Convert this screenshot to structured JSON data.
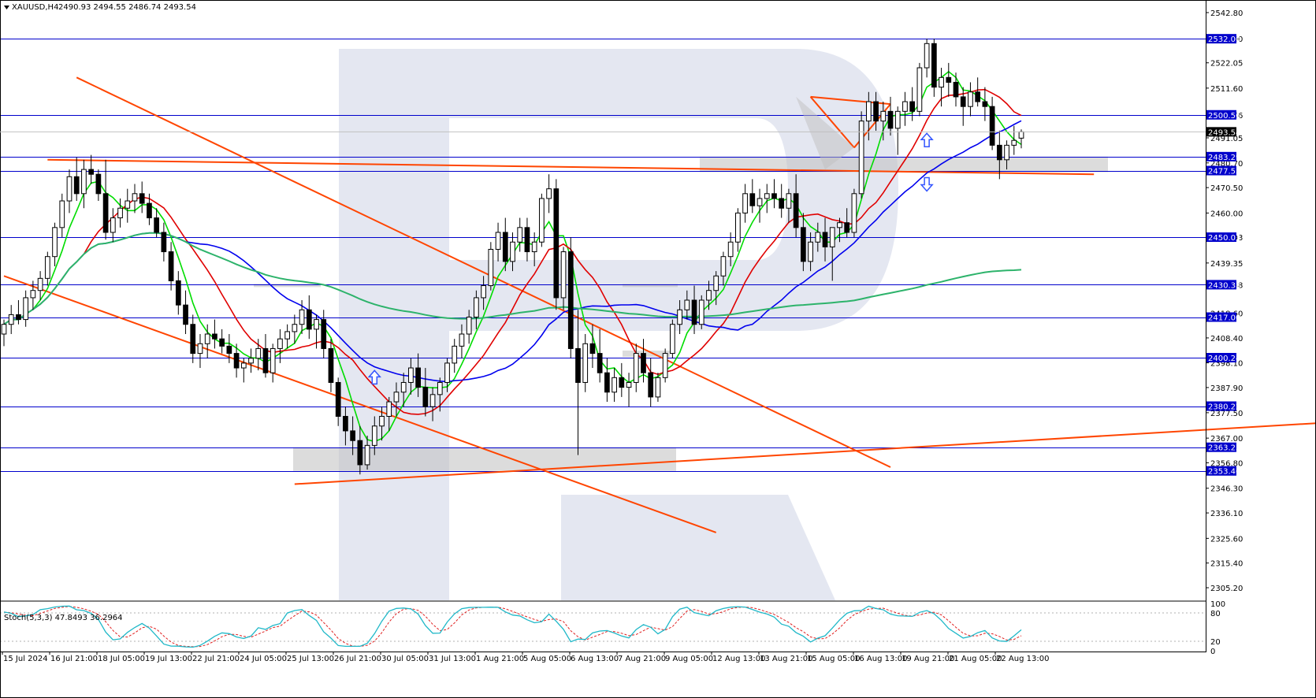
{
  "header": {
    "symbol": "XAUUSD,H4",
    "ohlc": "2490.93 2494.55 2486.74 2493.54",
    "indicator": "Stoch(5,3,3) 47.8493 36.2964"
  },
  "colors": {
    "level_line": "#0000cc",
    "level_label_bg": "#0000cc",
    "current_label_bg": "#000000",
    "trend_line": "#ff4500",
    "ma_fast": "#00dd00",
    "ma_mid": "#e00000",
    "ma_slow": "#0000ee",
    "ma_long": "#2db36b",
    "zone": "#c0c0c0",
    "arrow": "#3355ff",
    "stoch_main": "#1fb8c8",
    "stoch_signal": "#e02020",
    "watermark": "#dfe3ee"
  },
  "price_axis": {
    "ticks": [
      "2542.80",
      "2532.00",
      "2522.05",
      "2511.60",
      "2500.56",
      "2491.05",
      "2480.70",
      "2470.50",
      "2460.00",
      "2450.03",
      "2439.35",
      "2430.38",
      "2418.60",
      "2408.40",
      "2398.10",
      "2387.90",
      "2377.50",
      "2367.00",
      "2356.80",
      "2346.30",
      "2336.10",
      "2325.60",
      "2315.40",
      "2305.20"
    ],
    "current_price_label": "2493.54"
  },
  "stoch_axis": {
    "ticks": [
      "100",
      "80",
      "20",
      "0"
    ]
  },
  "time_axis": {
    "labels": [
      "15 Jul 2024",
      "16 Jul 21:00",
      "18 Jul 05:00",
      "19 Jul 13:00",
      "22 Jul 21:00",
      "24 Jul 05:00",
      "25 Jul 13:00",
      "26 Jul 21:00",
      "30 Jul 05:00",
      "31 Jul 13:00",
      "1 Aug 21:00",
      "5 Aug 05:00",
      "6 Aug 13:00",
      "7 Aug 21:00",
      "9 Aug 05:00",
      "12 Aug 13:00",
      "13 Aug 21:00",
      "15 Aug 05:00",
      "16 Aug 13:00",
      "19 Aug 21:00",
      "21 Aug 05:00",
      "22 Aug 13:00"
    ]
  },
  "chart_data": [
    {
      "type": "candlestick",
      "symbol": "XAUUSD",
      "timeframe": "H4",
      "y_range": [
        2300,
        2548
      ],
      "horizontal_levels": [
        {
          "value": 2532.0,
          "label": "2532.00"
        },
        {
          "value": 2500.56,
          "label": "2500.56"
        },
        {
          "value": 2483.29,
          "label": "2483.29"
        },
        {
          "value": 2477.53,
          "label": "2477.53"
        },
        {
          "value": 2450.03,
          "label": "2450.03"
        },
        {
          "value": 2430.38,
          "label": "2430.38"
        },
        {
          "value": 2417.0,
          "label": "2417.00"
        },
        {
          "value": 2400.24,
          "label": "2400.24"
        },
        {
          "value": 2380.22,
          "label": "2380.22"
        },
        {
          "value": 2363.23,
          "label": "2363.23"
        },
        {
          "value": 2353.46,
          "label": "2353.46"
        }
      ],
      "candles": [
        [
          2410,
          2416,
          2405,
          2414
        ],
        [
          2414,
          2422,
          2410,
          2418
        ],
        [
          2418,
          2424,
          2414,
          2416
        ],
        [
          2416,
          2428,
          2413,
          2425
        ],
        [
          2425,
          2432,
          2420,
          2428
        ],
        [
          2428,
          2436,
          2424,
          2433
        ],
        [
          2433,
          2444,
          2430,
          2442
        ],
        [
          2442,
          2456,
          2438,
          2454
        ],
        [
          2454,
          2468,
          2450,
          2465
        ],
        [
          2465,
          2478,
          2460,
          2475
        ],
        [
          2475,
          2483,
          2465,
          2468
        ],
        [
          2468,
          2482,
          2462,
          2478
        ],
        [
          2478,
          2484,
          2472,
          2476
        ],
        [
          2476,
          2478,
          2465,
          2468
        ],
        [
          2468,
          2482,
          2449,
          2452
        ],
        [
          2452,
          2462,
          2448,
          2458
        ],
        [
          2458,
          2466,
          2454,
          2462
        ],
        [
          2462,
          2470,
          2456,
          2465
        ],
        [
          2465,
          2472,
          2460,
          2468
        ],
        [
          2468,
          2473,
          2460,
          2464
        ],
        [
          2464,
          2468,
          2455,
          2458
        ],
        [
          2458,
          2462,
          2450,
          2452
        ],
        [
          2452,
          2456,
          2440,
          2444
        ],
        [
          2444,
          2448,
          2428,
          2432
        ],
        [
          2432,
          2436,
          2418,
          2422
        ],
        [
          2422,
          2428,
          2410,
          2414
        ],
        [
          2414,
          2418,
          2398,
          2402
        ],
        [
          2402,
          2410,
          2396,
          2406
        ],
        [
          2406,
          2414,
          2400,
          2410
        ],
        [
          2410,
          2416,
          2404,
          2408
        ],
        [
          2408,
          2412,
          2402,
          2405
        ],
        [
          2405,
          2410,
          2398,
          2402
        ],
        [
          2402,
          2406,
          2392,
          2396
        ],
        [
          2396,
          2400,
          2390,
          2398
        ],
        [
          2398,
          2404,
          2394,
          2400
        ],
        [
          2400,
          2408,
          2395,
          2404
        ],
        [
          2404,
          2410,
          2392,
          2394
        ],
        [
          2394,
          2406,
          2390,
          2404
        ],
        [
          2404,
          2412,
          2398,
          2408
        ],
        [
          2408,
          2414,
          2404,
          2411
        ],
        [
          2411,
          2418,
          2406,
          2414
        ],
        [
          2414,
          2424,
          2410,
          2420
        ],
        [
          2420,
          2426,
          2408,
          2412
        ],
        [
          2412,
          2418,
          2404,
          2416
        ],
        [
          2416,
          2420,
          2400,
          2404
        ],
        [
          2404,
          2408,
          2386,
          2390
        ],
        [
          2390,
          2392,
          2372,
          2376
        ],
        [
          2376,
          2380,
          2364,
          2370
        ],
        [
          2370,
          2376,
          2360,
          2366
        ],
        [
          2366,
          2372,
          2352,
          2356
        ],
        [
          2356,
          2368,
          2354,
          2364
        ],
        [
          2364,
          2376,
          2360,
          2372
        ],
        [
          2372,
          2380,
          2366,
          2376
        ],
        [
          2376,
          2384,
          2370,
          2382
        ],
        [
          2382,
          2390,
          2376,
          2386
        ],
        [
          2386,
          2394,
          2380,
          2390
        ],
        [
          2390,
          2400,
          2385,
          2396
        ],
        [
          2396,
          2402,
          2384,
          2388
        ],
        [
          2388,
          2396,
          2376,
          2380
        ],
        [
          2380,
          2388,
          2374,
          2385
        ],
        [
          2385,
          2392,
          2378,
          2390
        ],
        [
          2390,
          2400,
          2386,
          2398
        ],
        [
          2398,
          2408,
          2394,
          2405
        ],
        [
          2405,
          2414,
          2400,
          2410
        ],
        [
          2410,
          2420,
          2406,
          2417
        ],
        [
          2417,
          2428,
          2412,
          2425
        ],
        [
          2425,
          2434,
          2420,
          2430
        ],
        [
          2430,
          2448,
          2428,
          2445
        ],
        [
          2445,
          2456,
          2440,
          2452
        ],
        [
          2452,
          2458,
          2436,
          2440
        ],
        [
          2440,
          2452,
          2436,
          2448
        ],
        [
          2448,
          2458,
          2444,
          2454
        ],
        [
          2454,
          2458,
          2440,
          2444
        ],
        [
          2444,
          2452,
          2438,
          2448
        ],
        [
          2448,
          2468,
          2446,
          2466
        ],
        [
          2466,
          2476,
          2460,
          2470
        ],
        [
          2470,
          2474,
          2420,
          2425
        ],
        [
          2425,
          2446,
          2420,
          2444
        ],
        [
          2444,
          2450,
          2400,
          2404
        ],
        [
          2404,
          2420,
          2360,
          2390
        ],
        [
          2390,
          2410,
          2386,
          2406
        ],
        [
          2406,
          2414,
          2396,
          2402
        ],
        [
          2402,
          2412,
          2390,
          2394
        ],
        [
          2394,
          2400,
          2382,
          2386
        ],
        [
          2386,
          2396,
          2382,
          2392
        ],
        [
          2392,
          2398,
          2384,
          2388
        ],
        [
          2388,
          2394,
          2380,
          2390
        ],
        [
          2390,
          2406,
          2386,
          2402
        ],
        [
          2402,
          2408,
          2390,
          2394
        ],
        [
          2394,
          2400,
          2380,
          2384
        ],
        [
          2384,
          2394,
          2382,
          2392
        ],
        [
          2392,
          2404,
          2390,
          2402
        ],
        [
          2402,
          2416,
          2400,
          2414
        ],
        [
          2414,
          2424,
          2410,
          2420
        ],
        [
          2420,
          2428,
          2416,
          2424
        ],
        [
          2424,
          2430,
          2410,
          2414
        ],
        [
          2414,
          2426,
          2412,
          2424
        ],
        [
          2424,
          2432,
          2420,
          2428
        ],
        [
          2428,
          2436,
          2422,
          2434
        ],
        [
          2434,
          2444,
          2430,
          2442
        ],
        [
          2442,
          2452,
          2438,
          2448
        ],
        [
          2448,
          2462,
          2444,
          2460
        ],
        [
          2460,
          2472,
          2456,
          2468
        ],
        [
          2468,
          2474,
          2460,
          2463
        ],
        [
          2463,
          2470,
          2456,
          2466
        ],
        [
          2466,
          2472,
          2460,
          2468
        ],
        [
          2468,
          2474,
          2462,
          2466
        ],
        [
          2466,
          2472,
          2458,
          2462
        ],
        [
          2462,
          2470,
          2456,
          2468
        ],
        [
          2468,
          2476,
          2450,
          2454
        ],
        [
          2454,
          2460,
          2436,
          2440
        ],
        [
          2440,
          2452,
          2436,
          2448
        ],
        [
          2448,
          2456,
          2444,
          2452
        ],
        [
          2452,
          2458,
          2440,
          2446
        ],
        [
          2446,
          2452,
          2432,
          2454
        ],
        [
          2454,
          2458,
          2448,
          2456
        ],
        [
          2456,
          2462,
          2450,
          2452
        ],
        [
          2452,
          2470,
          2450,
          2468
        ],
        [
          2468,
          2502,
          2466,
          2498
        ],
        [
          2498,
          2510,
          2490,
          2506
        ],
        [
          2506,
          2510,
          2494,
          2498
        ],
        [
          2498,
          2506,
          2490,
          2502
        ],
        [
          2502,
          2508,
          2492,
          2495
        ],
        [
          2495,
          2504,
          2484,
          2502
        ],
        [
          2502,
          2510,
          2496,
          2506
        ],
        [
          2506,
          2512,
          2498,
          2502
        ],
        [
          2502,
          2522,
          2500,
          2520
        ],
        [
          2520,
          2532,
          2516,
          2530
        ],
        [
          2530,
          2532,
          2508,
          2512
        ],
        [
          2512,
          2520,
          2504,
          2516
        ],
        [
          2516,
          2522,
          2508,
          2514
        ],
        [
          2514,
          2518,
          2504,
          2508
        ],
        [
          2508,
          2512,
          2496,
          2504
        ],
        [
          2504,
          2514,
          2500,
          2510
        ],
        [
          2510,
          2516,
          2504,
          2506
        ],
        [
          2506,
          2512,
          2498,
          2504
        ],
        [
          2504,
          2508,
          2486,
          2488
        ],
        [
          2488,
          2494,
          2474,
          2482
        ],
        [
          2482,
          2490,
          2478,
          2488
        ],
        [
          2488,
          2496,
          2484,
          2490
        ],
        [
          2490.93,
          2494.55,
          2486.74,
          2493.54
        ]
      ],
      "moving_averages": [
        {
          "color": "ma_fast",
          "period": 5
        },
        {
          "color": "ma_mid",
          "period": 12
        },
        {
          "color": "ma_slow",
          "period": 26
        },
        {
          "color": "ma_long",
          "period": 130
        }
      ],
      "annotations": {
        "arrows_up": [
          [
            51,
            2392
          ],
          [
            127,
            2490
          ]
        ],
        "arrows_down": [
          [
            127,
            2472
          ]
        ]
      }
    },
    {
      "type": "line",
      "indicator": "Stochastic",
      "y_range": [
        0,
        100
      ],
      "levels": [
        20,
        80
      ]
    }
  ]
}
